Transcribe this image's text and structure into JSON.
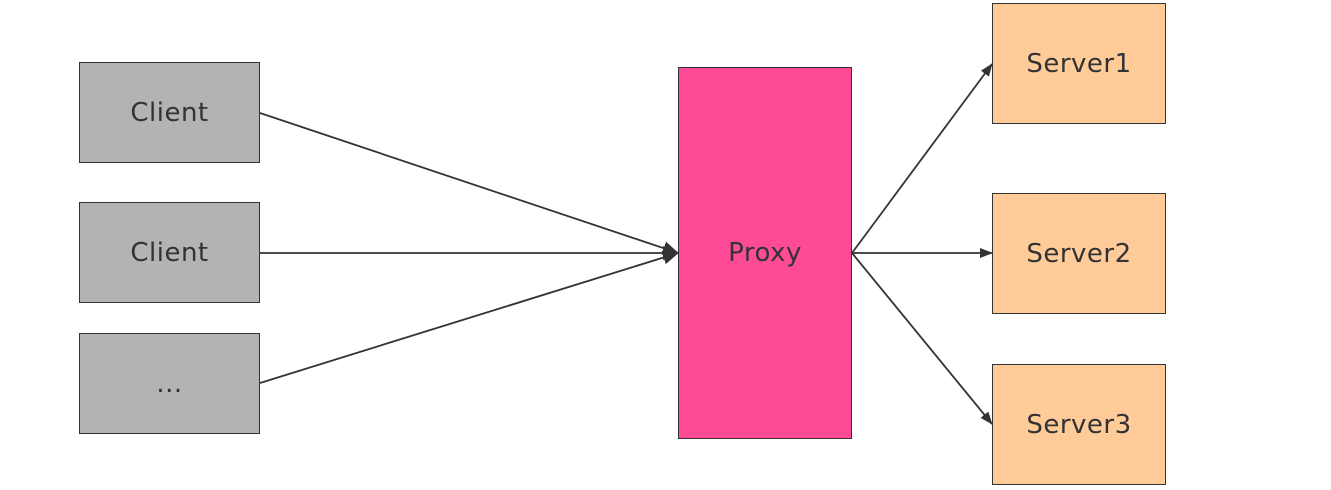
{
  "clients": [
    {
      "label": "Client"
    },
    {
      "label": "Client"
    },
    {
      "label": "..."
    }
  ],
  "proxy": {
    "label": "Proxy"
  },
  "servers": [
    {
      "label": "Server1"
    },
    {
      "label": "Server2"
    },
    {
      "label": "Server3"
    }
  ],
  "colors": {
    "client_fill": "#b3b3b3",
    "proxy_fill": "#ff4b96",
    "server_fill": "#ffcb99",
    "stroke": "#333333"
  }
}
